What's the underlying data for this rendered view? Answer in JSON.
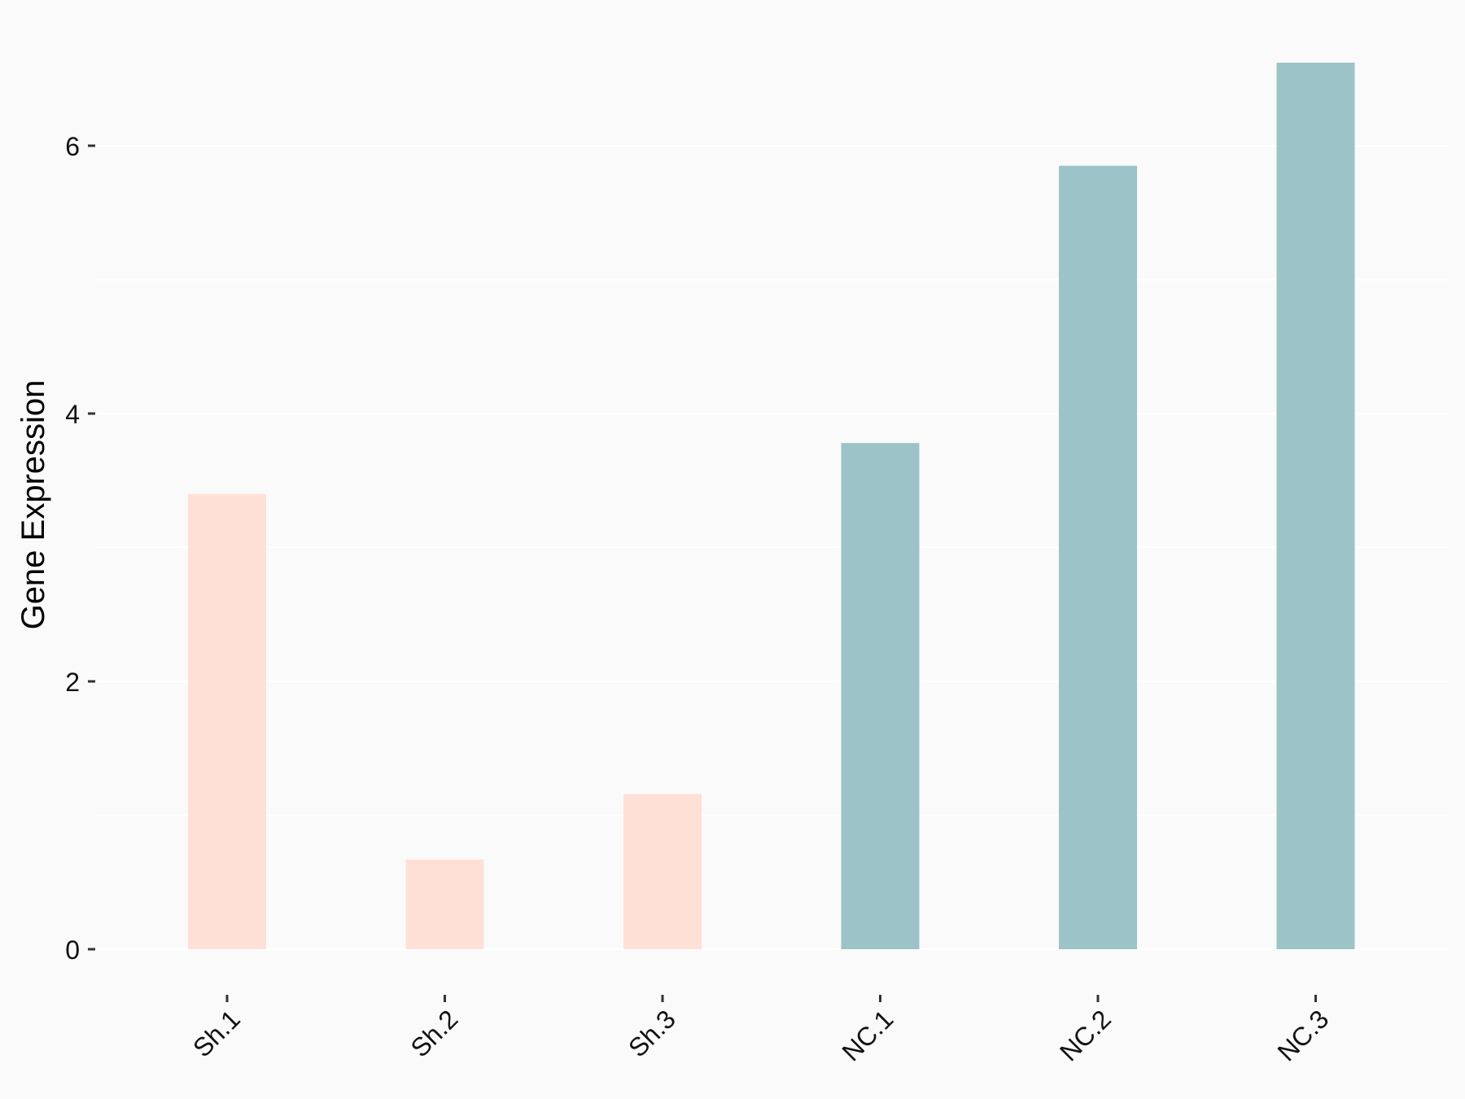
{
  "chart_data": {
    "type": "bar",
    "title": "",
    "xlabel": "",
    "ylabel": "Gene Expression",
    "categories": [
      "Sh.1",
      "Sh.2",
      "Sh.3",
      "NC.1",
      "NC.2",
      "NC.3"
    ],
    "values": [
      3.4,
      0.67,
      1.16,
      3.78,
      5.85,
      6.62
    ],
    "ylim": [
      -0.32,
      6.85
    ],
    "yticks": [
      0,
      2,
      4,
      6
    ],
    "ytick_labels": [
      "0",
      "2",
      "4",
      "6"
    ],
    "grid": true,
    "legend": "none",
    "colors": {
      "background": "#fafafa",
      "grid": "#ffffff",
      "sh": "#ffe0d6",
      "nc": "#9cc3c7",
      "text": "#111111"
    },
    "bar_colors": [
      "#ffe0d6",
      "#ffe0d6",
      "#ffe0d6",
      "#9cc3c7",
      "#9cc3c7",
      "#9cc3c7"
    ]
  }
}
